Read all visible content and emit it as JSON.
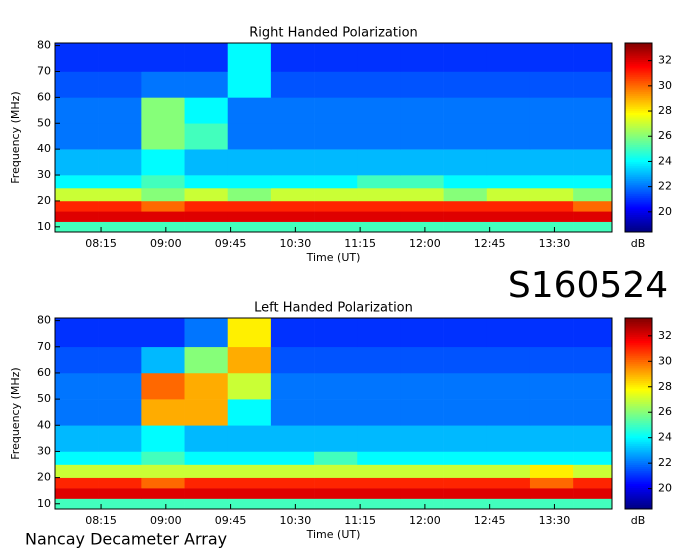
{
  "label": "S160524",
  "footer": "Nancay Decameter Array",
  "chart_data": [
    {
      "type": "heatmap",
      "title": "Right Handed Polarization",
      "xlabel": "Time (UT)",
      "ylabel": "Frequency (MHz)",
      "colorbar_label": "dB",
      "colormap": "jet",
      "xlim": [
        463,
        850
      ],
      "ylim": [
        8,
        81
      ],
      "clim": [
        18.4,
        33.4
      ],
      "xticks": [
        {
          "value": 495,
          "label": "08:15"
        },
        {
          "value": 540,
          "label": "09:00"
        },
        {
          "value": 585,
          "label": "09:45"
        },
        {
          "value": 630,
          "label": "10:30"
        },
        {
          "value": 675,
          "label": "11:15"
        },
        {
          "value": 720,
          "label": "12:00"
        },
        {
          "value": 765,
          "label": "12:45"
        },
        {
          "value": 810,
          "label": "13:30"
        }
      ],
      "yticks": [
        10,
        20,
        30,
        40,
        50,
        60,
        70,
        80
      ],
      "cticks": [
        20,
        22,
        24,
        26,
        28,
        30,
        32
      ],
      "x_bins": [
        463,
        493,
        523,
        553,
        583,
        613,
        643,
        673,
        703,
        733,
        763,
        793,
        823,
        850
      ],
      "y_bins": [
        8,
        12,
        16,
        20,
        25,
        30,
        40,
        50,
        60,
        70,
        81
      ],
      "z": [
        [
          25,
          25,
          25,
          25,
          25,
          25,
          25,
          25,
          25,
          25,
          25,
          25,
          25
        ],
        [
          32,
          32,
          32,
          32,
          32,
          32,
          32,
          32,
          32,
          32,
          32,
          32,
          32
        ],
        [
          31,
          31,
          30,
          31,
          31,
          31,
          31,
          31,
          31,
          31,
          31,
          31,
          30
        ],
        [
          27,
          27,
          26,
          27,
          26,
          27,
          27,
          27,
          27,
          26,
          27,
          27,
          26
        ],
        [
          24,
          24,
          25,
          24,
          24,
          24,
          24,
          25,
          25,
          24,
          24,
          24,
          24
        ],
        [
          23,
          23,
          24,
          23,
          23,
          23,
          23,
          23,
          23,
          23,
          23,
          23,
          23
        ],
        [
          22,
          22,
          26,
          25,
          22,
          22,
          22,
          22,
          22,
          22,
          22,
          22,
          22
        ],
        [
          22,
          22,
          26,
          24,
          22,
          22,
          22,
          22,
          22,
          22,
          22,
          22,
          22
        ],
        [
          21.5,
          21.5,
          22,
          22,
          24,
          21.5,
          21.5,
          21.5,
          21.5,
          21.5,
          21.5,
          21.5,
          21.5
        ],
        [
          21,
          21,
          21,
          21,
          24,
          21,
          21,
          21,
          21,
          21,
          21,
          21,
          21
        ]
      ]
    },
    {
      "type": "heatmap",
      "title": "Left Handed Polarization",
      "xlabel": "Time (UT)",
      "ylabel": "Frequency (MHz)",
      "colorbar_label": "dB",
      "colormap": "jet",
      "xlim": [
        463,
        850
      ],
      "ylim": [
        8,
        81
      ],
      "clim": [
        18.4,
        33.4
      ],
      "xticks": [
        {
          "value": 495,
          "label": "08:15"
        },
        {
          "value": 540,
          "label": "09:00"
        },
        {
          "value": 585,
          "label": "09:45"
        },
        {
          "value": 630,
          "label": "10:30"
        },
        {
          "value": 675,
          "label": "11:15"
        },
        {
          "value": 720,
          "label": "12:00"
        },
        {
          "value": 765,
          "label": "12:45"
        },
        {
          "value": 810,
          "label": "13:30"
        }
      ],
      "yticks": [
        10,
        20,
        30,
        40,
        50,
        60,
        70,
        80
      ],
      "cticks": [
        20,
        22,
        24,
        26,
        28,
        30,
        32
      ],
      "x_bins": [
        463,
        493,
        523,
        553,
        583,
        613,
        643,
        673,
        703,
        733,
        763,
        793,
        823,
        850
      ],
      "y_bins": [
        8,
        12,
        16,
        20,
        25,
        30,
        40,
        50,
        60,
        70,
        81
      ],
      "z": [
        [
          25,
          25,
          25,
          25,
          25,
          25,
          25,
          25,
          25,
          25,
          25,
          25,
          25
        ],
        [
          32,
          32,
          32,
          32,
          32,
          32,
          32,
          32,
          32,
          32,
          32,
          32,
          32
        ],
        [
          31,
          31,
          30,
          31,
          31,
          31,
          31,
          31,
          31,
          31,
          31,
          30,
          31
        ],
        [
          27,
          27,
          27,
          27,
          27,
          27,
          27,
          27,
          27,
          27,
          27,
          28,
          27
        ],
        [
          24,
          24,
          25,
          24,
          24,
          24,
          25,
          24,
          24,
          24,
          24,
          24,
          24
        ],
        [
          23,
          23,
          24,
          23,
          23,
          23,
          23,
          23,
          23,
          23,
          23,
          23,
          23
        ],
        [
          22,
          22,
          29,
          29,
          24,
          22,
          22,
          22,
          22,
          22,
          22,
          22,
          22
        ],
        [
          22,
          22,
          30,
          29,
          27,
          22,
          22,
          22,
          22,
          22,
          22,
          22,
          22
        ],
        [
          21.5,
          21.5,
          23,
          26,
          29,
          21.5,
          21.5,
          21.5,
          21.5,
          21.5,
          21.5,
          21.5,
          21.5
        ],
        [
          21,
          21,
          21,
          22,
          28,
          21,
          21,
          21,
          21,
          21,
          21,
          21,
          21
        ]
      ]
    }
  ]
}
